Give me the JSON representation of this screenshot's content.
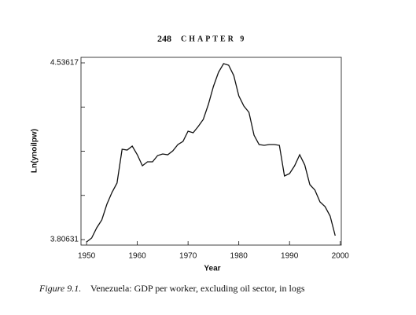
{
  "page_header": {
    "page_number": "248",
    "chapter": "CHAPTER 9"
  },
  "chart_data": {
    "type": "line",
    "x_label": "Year",
    "y_label": "Ln(ynoilpw)",
    "caption_label": "Figure 9.1.",
    "caption": "Venezuela: GDP per worker, excluding oil sector, in logs",
    "x": [
      1950,
      1951,
      1952,
      1953,
      1954,
      1955,
      1956,
      1957,
      1958,
      1959,
      1960,
      1961,
      1962,
      1963,
      1964,
      1965,
      1966,
      1967,
      1968,
      1969,
      1970,
      1971,
      1972,
      1973,
      1974,
      1975,
      1976,
      1977,
      1978,
      1979,
      1980,
      1981,
      1982,
      1983,
      1984,
      1985,
      1986,
      1987,
      1988,
      1989,
      1990,
      1991,
      1992,
      1993,
      1994,
      1995,
      1996,
      1997,
      1998,
      1999
    ],
    "series": [
      {
        "color": "#111111",
        "values": [
          3.7966,
          3.8128,
          3.855,
          3.8874,
          3.9523,
          4.0009,
          4.0399,
          4.1793,
          4.1761,
          4.1923,
          4.1566,
          4.1112,
          4.1274,
          4.1274,
          4.1534,
          4.1599,
          4.1566,
          4.1729,
          4.1988,
          4.2118,
          4.254,
          4.2475,
          4.2734,
          4.3026,
          4.3642,
          4.4389,
          4.4972,
          4.5329,
          4.5264,
          4.4842,
          4.3999,
          4.3578,
          4.3318,
          4.2377,
          4.1988,
          4.1955,
          4.1988,
          4.1988,
          4.1955,
          4.0691,
          4.0788,
          4.1112,
          4.1566,
          4.1144,
          4.0334,
          4.0107,
          3.962,
          3.9425,
          3.9036,
          3.8225
        ]
      }
    ],
    "xlim": [
      1948.9,
      2000.2
    ],
    "xticks": [
      1950,
      1960,
      1970,
      1980,
      1990,
      2000
    ],
    "ylim": [
      3.7836,
      4.5589
    ],
    "yticks": [
      3.80631,
      4.53617
    ],
    "yminor_ticks": [
      3.98878,
      4.17124,
      4.35371
    ]
  }
}
